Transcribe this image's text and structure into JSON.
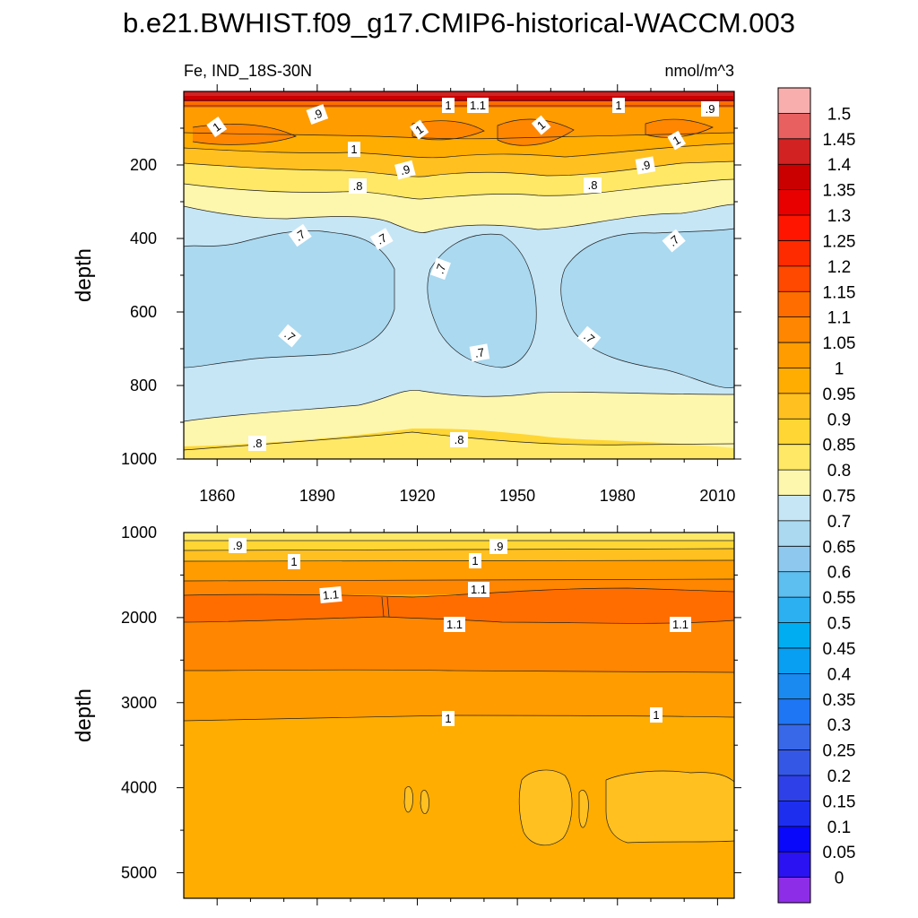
{
  "chart_data": {
    "type": "heatmap",
    "title": "b.e21.BWHIST.f09_g17.CMIP6-historical-WACCM.003",
    "subtitle_left": "Fe, IND_18S-30N",
    "subtitle_right": "nmol/m^3",
    "colorbar": {
      "levels": [
        "1.5",
        "1.45",
        "1.4",
        "1.35",
        "1.3",
        "1.25",
        "1.2",
        "1.15",
        "1.1",
        "1.05",
        "1",
        "0.95",
        "0.9",
        "0.85",
        "0.8",
        "0.75",
        "0.7",
        "0.65",
        "0.6",
        "0.55",
        "0.5",
        "0.45",
        "0.4",
        "0.35",
        "0.3",
        "0.25",
        "0.2",
        "0.15",
        "0.1",
        "0.05",
        "0"
      ],
      "colors": [
        "#f9aeae",
        "#e86060",
        "#d22222",
        "#ca0000",
        "#e80000",
        "#ff1500",
        "#fe2b00",
        "#ff4800",
        "#ff6d00",
        "#ff8600",
        "#ff9c00",
        "#ffad00",
        "#ffc020",
        "#ffd633",
        "#fee866",
        "#fdf6ad",
        "#c6e6f6",
        "#aad9f0",
        "#8ec8ee",
        "#5dbef0",
        "#2cb0f1",
        "#00adf0",
        "#089ff2",
        "#1a89f0",
        "#1f76f4",
        "#3868e8",
        "#3457e6",
        "#2e40e8",
        "#1e2eee",
        "#0a08fa",
        "#2a12f2",
        "#8e2de8"
      ]
    },
    "top_panel": {
      "ylabel": "depth",
      "ylim": [
        1000,
        0
      ],
      "yticks": [
        "200",
        "400",
        "600",
        "800",
        "1000"
      ],
      "xticks": [
        "1860",
        "1890",
        "1920",
        "1950",
        "1980",
        "2010"
      ],
      "xlim": [
        1850,
        2015
      ],
      "contour_labels": [
        ".9",
        "1.1",
        "1",
        ".8",
        ".7"
      ]
    },
    "bottom_panel": {
      "ylabel": "depth",
      "ylim": [
        5300,
        1000
      ],
      "yticks": [
        "1000",
        "2000",
        "3000",
        "4000",
        "5000"
      ],
      "contour_labels": [
        ".9",
        "1",
        "1.1"
      ]
    }
  }
}
